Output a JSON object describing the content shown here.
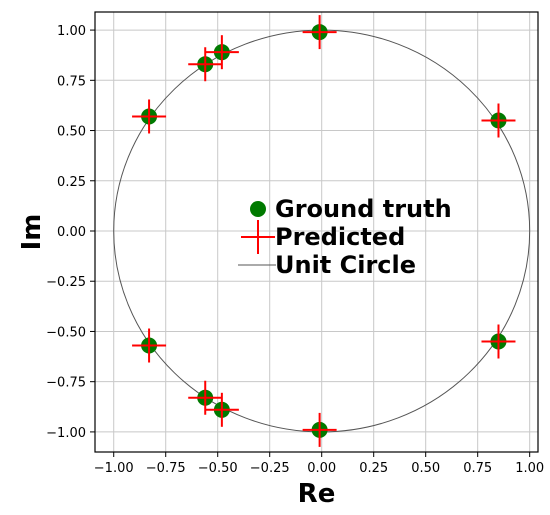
{
  "chart_data": {
    "type": "scatter",
    "title": "",
    "xlabel": "Re",
    "ylabel": "Im",
    "xlim": [
      -1.09,
      1.04
    ],
    "ylim": [
      -1.1,
      1.09
    ],
    "xticks": [
      -1.0,
      -0.75,
      -0.5,
      -0.25,
      0.0,
      0.25,
      0.5,
      0.75,
      1.0
    ],
    "yticks": [
      -1.0,
      -0.75,
      -0.5,
      -0.25,
      0.0,
      0.25,
      0.5,
      0.75,
      1.0
    ],
    "xtick_labels": [
      "−1.00",
      "−0.75",
      "−0.50",
      "−0.25",
      "0.00",
      "0.25",
      "0.50",
      "0.75",
      "1.00"
    ],
    "ytick_labels": [
      "−1.00",
      "−0.75",
      "−0.50",
      "−0.25",
      "0.00",
      "0.25",
      "0.50",
      "0.75",
      "1.00"
    ],
    "grid": true,
    "legend_position": "center",
    "series": [
      {
        "name": "Ground truth",
        "marker": "circle",
        "color": "#007a00",
        "points": [
          [
            -0.01,
            0.99
          ],
          [
            -0.48,
            0.89
          ],
          [
            -0.56,
            0.83
          ],
          [
            -0.83,
            0.57
          ],
          [
            0.85,
            0.55
          ],
          [
            -0.83,
            -0.57
          ],
          [
            0.85,
            -0.55
          ],
          [
            -0.56,
            -0.83
          ],
          [
            -0.48,
            -0.89
          ],
          [
            -0.01,
            -0.99
          ]
        ]
      },
      {
        "name": "Predicted",
        "marker": "plus",
        "color": "#ff0000",
        "points": [
          [
            -0.01,
            0.99
          ],
          [
            -0.48,
            0.89
          ],
          [
            -0.56,
            0.83
          ],
          [
            -0.83,
            0.57
          ],
          [
            0.85,
            0.55
          ],
          [
            -0.83,
            -0.57
          ],
          [
            0.85,
            -0.55
          ],
          [
            -0.56,
            -0.83
          ],
          [
            -0.48,
            -0.89
          ],
          [
            -0.01,
            -0.99
          ]
        ]
      },
      {
        "name": "Unit Circle",
        "marker": "line",
        "color": "#555555",
        "radius": 1.0
      }
    ]
  }
}
